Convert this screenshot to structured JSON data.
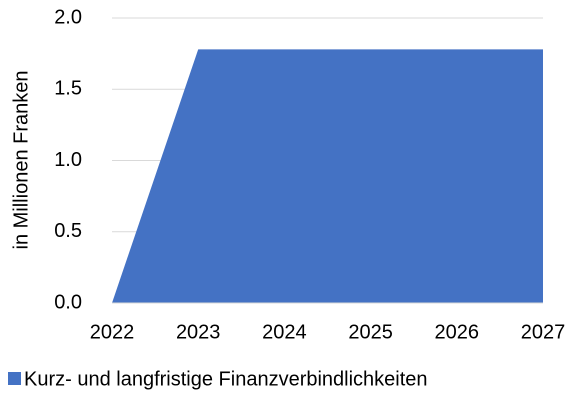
{
  "chart_data": {
    "type": "area",
    "y_label": "in Millionen Franken",
    "categories": [
      "2022",
      "2023",
      "2024",
      "2025",
      "2026",
      "2027"
    ],
    "series": [
      {
        "name": "Kurz- und langfristige Finanzverbindlichkeiten",
        "color": "#4472c4",
        "values": [
          0,
          1.78,
          1.78,
          1.78,
          1.78,
          1.78
        ]
      }
    ],
    "ylim": [
      0,
      2
    ],
    "yticks": [
      {
        "value": 0,
        "label": "0.0"
      },
      0.5,
      {
        "value": 1,
        "label": "1.0"
      },
      1.5,
      {
        "value": 2,
        "label": "2.0"
      }
    ],
    "grid": true,
    "legend": "bottom"
  }
}
